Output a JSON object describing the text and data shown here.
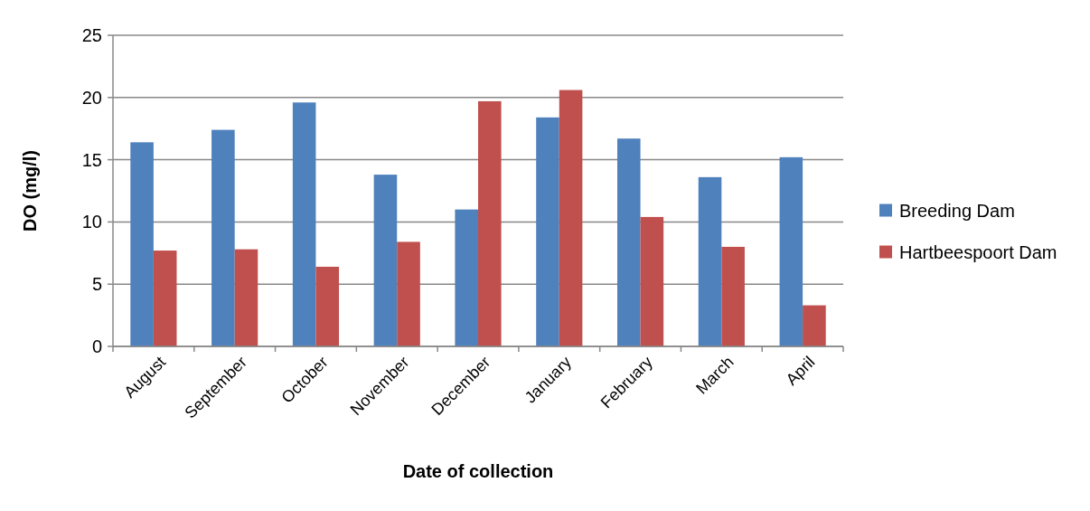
{
  "chart_data": {
    "type": "bar",
    "xlabel": "Date of collection",
    "ylabel": "DO (mg/l)",
    "categories": [
      "August",
      "September",
      "October",
      "November",
      "December",
      "January",
      "February",
      "March",
      "April"
    ],
    "series": [
      {
        "name": "Breeding Dam",
        "color": "#4f81bd",
        "values": [
          16.4,
          17.4,
          19.6,
          13.8,
          11.0,
          18.4,
          16.7,
          13.6,
          15.2
        ]
      },
      {
        "name": "Hartbeespoort Dam",
        "color": "#c0504d",
        "values": [
          7.7,
          7.8,
          6.4,
          8.4,
          19.7,
          20.6,
          10.4,
          8.0,
          3.3
        ]
      }
    ],
    "ylim": [
      0,
      25
    ],
    "yticks": [
      0,
      5,
      10,
      15,
      20,
      25
    ],
    "grid": "y",
    "legend": "right"
  }
}
